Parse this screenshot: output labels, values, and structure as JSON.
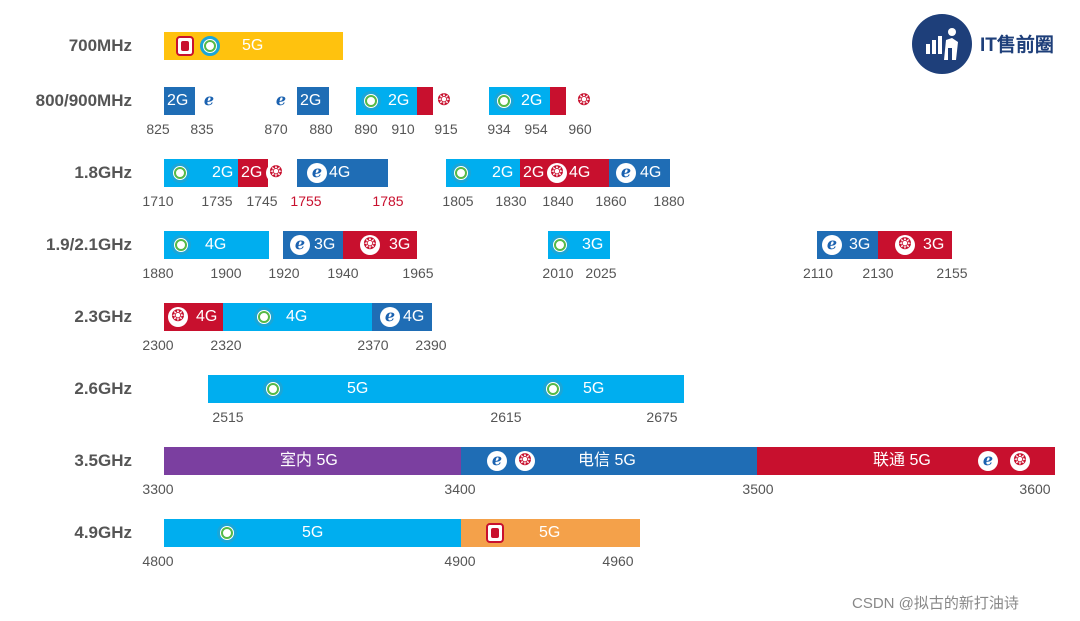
{
  "logo": {
    "text": "IT售前圈"
  },
  "watermark": "CSDN @拟古的新打油诗",
  "colors": {
    "mobile_light": "#00aeef",
    "mobile_5g_yellow": "#ffc20e",
    "telecom": "#1f6db5",
    "unicom": "#c8102e",
    "indoor": "#7b3fa0",
    "broadnet_orange": "#f4a14a"
  },
  "rows": [
    {
      "label": "700MHz",
      "segments": [
        {
          "label": "5G",
          "color": "#ffc20e",
          "icons": [
            "broadnet",
            "mobile"
          ]
        }
      ],
      "ticks": []
    },
    {
      "label": "800/900MHz",
      "segments": [
        {
          "label": "2G",
          "color": "#1f6db5",
          "icons": []
        },
        {
          "label": "2G",
          "color": "#1f6db5",
          "icons": []
        },
        {
          "label": "2G",
          "color": "#00aeef",
          "icons": [
            "mobile"
          ]
        },
        {
          "label": "",
          "color": "#c8102e",
          "icons": []
        },
        {
          "label": "2G",
          "color": "#00aeef",
          "icons": [
            "mobile"
          ]
        },
        {
          "label": "",
          "color": "#c8102e",
          "icons": []
        }
      ],
      "free_icons": [
        "telecom",
        "telecom",
        "unicom",
        "unicom"
      ],
      "ticks": [
        {
          "text": "825"
        },
        {
          "text": "835"
        },
        {
          "text": "870"
        },
        {
          "text": "880"
        },
        {
          "text": "890"
        },
        {
          "text": "910"
        },
        {
          "text": "915"
        },
        {
          "text": "934"
        },
        {
          "text": "954"
        },
        {
          "text": "960"
        }
      ]
    },
    {
      "label": "1.8GHz",
      "segments": [
        {
          "label": "2G",
          "color": "#00aeef",
          "icons": [
            "mobile"
          ]
        },
        {
          "label": "2G",
          "color": "#c8102e",
          "icons": [
            "unicom"
          ]
        },
        {
          "label": "4G",
          "color": "#1f6db5",
          "icons": [
            "telecom"
          ]
        },
        {
          "label": "2G",
          "color": "#00aeef",
          "icons": [
            "mobile"
          ]
        },
        {
          "label": "2G",
          "color": "#c8102e",
          "icons": []
        },
        {
          "label": "4G",
          "color": "#c8102e",
          "icons": [
            "unicom"
          ]
        },
        {
          "label": "4G",
          "color": "#1f6db5",
          "icons": [
            "telecom"
          ]
        }
      ],
      "ticks": [
        {
          "text": "1710"
        },
        {
          "text": "1735"
        },
        {
          "text": "1745"
        },
        {
          "text": "1755",
          "red": true
        },
        {
          "text": "1785",
          "red": true
        },
        {
          "text": "1805"
        },
        {
          "text": "1830"
        },
        {
          "text": "1840"
        },
        {
          "text": "1860"
        },
        {
          "text": "1880"
        }
      ]
    },
    {
      "label": "1.9/2.1GHz",
      "segments": [
        {
          "label": "4G",
          "color": "#00aeef",
          "icons": [
            "mobile"
          ]
        },
        {
          "label": "3G",
          "color": "#1f6db5",
          "icons": [
            "telecom"
          ]
        },
        {
          "label": "3G",
          "color": "#c8102e",
          "icons": [
            "unicom"
          ]
        },
        {
          "label": "3G",
          "color": "#00aeef",
          "icons": [
            "mobile"
          ]
        },
        {
          "label": "3G",
          "color": "#1f6db5",
          "icons": [
            "telecom"
          ]
        },
        {
          "label": "3G",
          "color": "#c8102e",
          "icons": [
            "unicom"
          ]
        }
      ],
      "ticks": [
        {
          "text": "1880"
        },
        {
          "text": "1900"
        },
        {
          "text": "1920"
        },
        {
          "text": "1940"
        },
        {
          "text": "1965"
        },
        {
          "text": "2010"
        },
        {
          "text": "2025"
        },
        {
          "text": "2110"
        },
        {
          "text": "2130"
        },
        {
          "text": "2155"
        }
      ]
    },
    {
      "label": "2.3GHz",
      "segments": [
        {
          "label": "4G",
          "color": "#c8102e",
          "icons": [
            "unicom"
          ]
        },
        {
          "label": "4G",
          "color": "#00aeef",
          "icons": [
            "mobile"
          ]
        },
        {
          "label": "4G",
          "color": "#1f6db5",
          "icons": [
            "telecom"
          ]
        }
      ],
      "ticks": [
        {
          "text": "2300"
        },
        {
          "text": "2320"
        },
        {
          "text": "2370"
        },
        {
          "text": "2390"
        }
      ]
    },
    {
      "label": "2.6GHz",
      "segments": [
        {
          "label": "5G",
          "color": "#00aeef",
          "icons": [
            "mobile"
          ]
        },
        {
          "label": "5G",
          "color": "#00aeef",
          "icons": [
            "mobile"
          ]
        }
      ],
      "ticks": [
        {
          "text": "2515"
        },
        {
          "text": "2615"
        },
        {
          "text": "2675"
        }
      ]
    },
    {
      "label": "3.5GHz",
      "segments": [
        {
          "label": "室内 5G",
          "color": "#7b3fa0",
          "icons": []
        },
        {
          "label": "电信 5G",
          "color": "#1f6db5",
          "icons": [
            "telecom",
            "unicom"
          ]
        },
        {
          "label": "联通 5G",
          "color": "#c8102e",
          "icons": [
            "telecom",
            "unicom"
          ]
        }
      ],
      "ticks": [
        {
          "text": "3300"
        },
        {
          "text": "3400"
        },
        {
          "text": "3500"
        },
        {
          "text": "3600"
        }
      ]
    },
    {
      "label": "4.9GHz",
      "segments": [
        {
          "label": "5G",
          "color": "#00aeef",
          "icons": [
            "mobile"
          ]
        },
        {
          "label": "5G",
          "color": "#f4a14a",
          "icons": [
            "broadnet"
          ]
        }
      ],
      "ticks": [
        {
          "text": "4800"
        },
        {
          "text": "4900"
        },
        {
          "text": "4960"
        }
      ]
    }
  ]
}
